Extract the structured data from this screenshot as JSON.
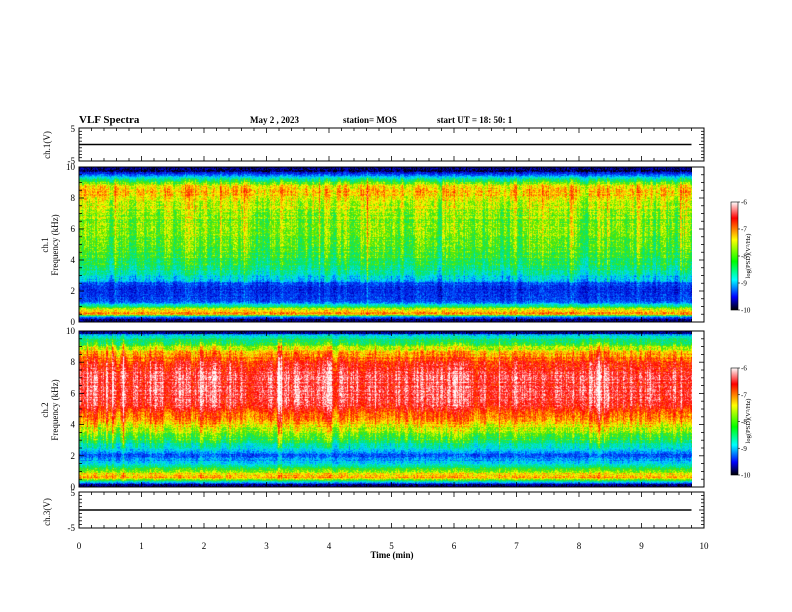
{
  "header": {
    "title": "VLF Spectra",
    "date": "May 2 , 2023",
    "station": "station= MOS",
    "start": "start  UT =   18: 50: 1"
  },
  "chart_data": [
    {
      "type": "line",
      "panel": "ch1-waveform",
      "ylabel": "ch.1(V)",
      "ylim": [
        -5,
        5
      ],
      "yticks": [
        "5",
        "-5"
      ],
      "series": [
        {
          "x": [
            0,
            9.8
          ],
          "values": [
            0,
            0
          ]
        }
      ],
      "line_color": "#000000"
    },
    {
      "type": "heatmap",
      "panel": "ch1-spectrogram",
      "ylabel_top": "ch.1",
      "ylabel": "Frequency (kHz)",
      "ylim": [
        0,
        10
      ],
      "xlim": [
        0,
        10
      ],
      "data_xmax": 9.8,
      "yticks": [
        "0",
        "2",
        "4",
        "6",
        "8",
        "10"
      ],
      "colorbar": {
        "label": "log(PSD)(V²/Hz)",
        "range": [
          -10,
          -6
        ],
        "ticks": [
          "-6",
          "-7",
          "-8",
          "-9",
          "-10"
        ],
        "colors": [
          "#ffffff",
          "#ff0000",
          "#ffff00",
          "#00ff00",
          "#00ffff",
          "#0000ff",
          "#000000"
        ]
      },
      "profile_khz": [
        0,
        0.3,
        0.5,
        0.8,
        1.2,
        1.6,
        2.0,
        2.3,
        2.7,
        3.5,
        4.5,
        5.5,
        7.0,
        8.5,
        8.9,
        9.3,
        9.7,
        10
      ],
      "profile_log_psd": [
        -10,
        -9.2,
        -7.0,
        -7.4,
        -8.9,
        -9.3,
        -9.3,
        -9.4,
        -8.8,
        -8.2,
        -7.9,
        -7.8,
        -7.7,
        -7.2,
        -7.6,
        -8.6,
        -9.7,
        -10
      ]
    },
    {
      "type": "heatmap",
      "panel": "ch2-spectrogram",
      "ylabel_top": "ch.2",
      "ylabel": "Frequency (kHz)",
      "ylim": [
        0,
        10
      ],
      "xlim": [
        0,
        10
      ],
      "data_xmax": 9.8,
      "yticks": [
        "0",
        "2",
        "4",
        "6",
        "8",
        "10"
      ],
      "colorbar": {
        "label": "log(PSD)(V²/Hz)",
        "range": [
          -10,
          -6
        ],
        "ticks": [
          "-6",
          "-7",
          "-8",
          "-9",
          "-10"
        ],
        "colors": [
          "#ffffff",
          "#ff0000",
          "#ffff00",
          "#00ff00",
          "#00ffff",
          "#0000ff",
          "#000000"
        ]
      },
      "profile_khz": [
        0,
        0.3,
        0.6,
        1.0,
        1.5,
        2.0,
        2.5,
        3.0,
        4.0,
        5.0,
        6.0,
        7.0,
        8.0,
        8.6,
        9.2,
        9.7,
        10
      ],
      "profile_log_psd": [
        -10,
        -8.8,
        -7.0,
        -7.6,
        -8.6,
        -9.2,
        -8.6,
        -8.0,
        -7.3,
        -6.6,
        -6.4,
        -6.4,
        -6.7,
        -7.2,
        -7.9,
        -8.6,
        -10
      ]
    },
    {
      "type": "line",
      "panel": "ch3-waveform",
      "ylabel": "ch.3(V)",
      "ylim": [
        -5,
        5
      ],
      "yticks": [
        "5",
        "-5"
      ],
      "series": [
        {
          "x": [
            0,
            9.8
          ],
          "values": [
            0,
            0
          ]
        }
      ],
      "line_color": "#000000"
    }
  ],
  "xaxis": {
    "label": "Time  (min)",
    "range": [
      0,
      10
    ],
    "ticks": [
      "0",
      "1",
      "2",
      "3",
      "4",
      "5",
      "6",
      "7",
      "8",
      "9",
      "10"
    ]
  }
}
